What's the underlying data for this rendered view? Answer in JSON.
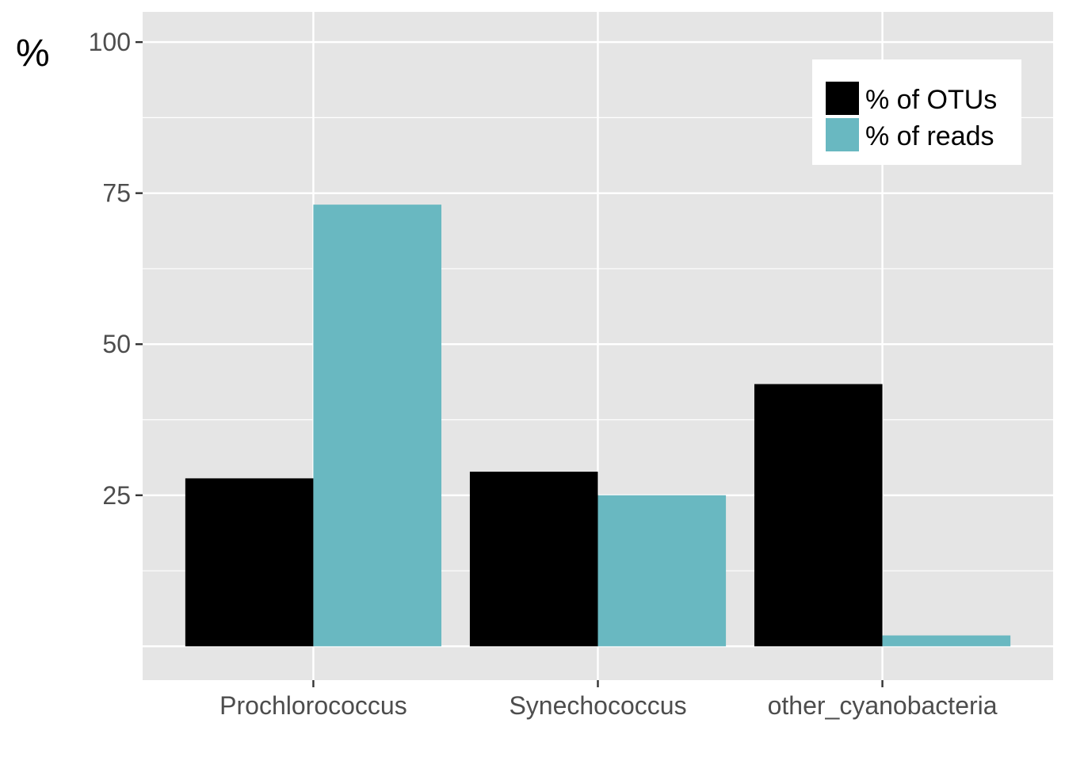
{
  "chart_data": {
    "type": "bar",
    "title": "",
    "xlabel": "",
    "ylabel": "%",
    "categories": [
      "Prochlorococcus",
      "Synechococcus",
      "other_cyanobacteria"
    ],
    "series": [
      {
        "name": "% of OTUs",
        "color": "#000000",
        "values": [
          27.8,
          28.9,
          43.4
        ]
      },
      {
        "name": "% of reads",
        "color": "#69b8c1",
        "values": [
          73.1,
          25.0,
          1.8
        ]
      }
    ],
    "ylim": [
      -5.6,
      105
    ],
    "yticks": [
      25,
      50,
      75,
      100
    ],
    "grid": true,
    "legend_position": "top-right",
    "panel_background": "#e5e5e5",
    "grid_color": "#ffffff"
  }
}
